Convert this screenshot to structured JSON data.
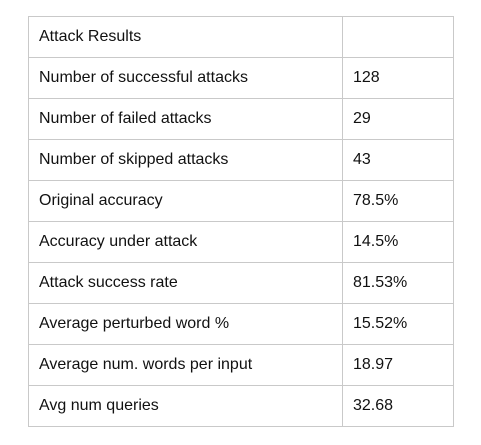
{
  "table": {
    "header": [
      "Attack Results",
      ""
    ],
    "rows": [
      [
        "Number of successful attacks",
        "128"
      ],
      [
        "Number of failed attacks",
        "29"
      ],
      [
        "Number of skipped attacks",
        "43"
      ],
      [
        "Original accuracy",
        "78.5%"
      ],
      [
        "Accuracy under attack",
        "14.5%"
      ],
      [
        "Attack success rate",
        "81.53%"
      ],
      [
        "Average perturbed word %",
        "15.52%"
      ],
      [
        "Average num. words per input",
        "18.97"
      ],
      [
        "Avg num queries",
        "32.68"
      ]
    ]
  }
}
